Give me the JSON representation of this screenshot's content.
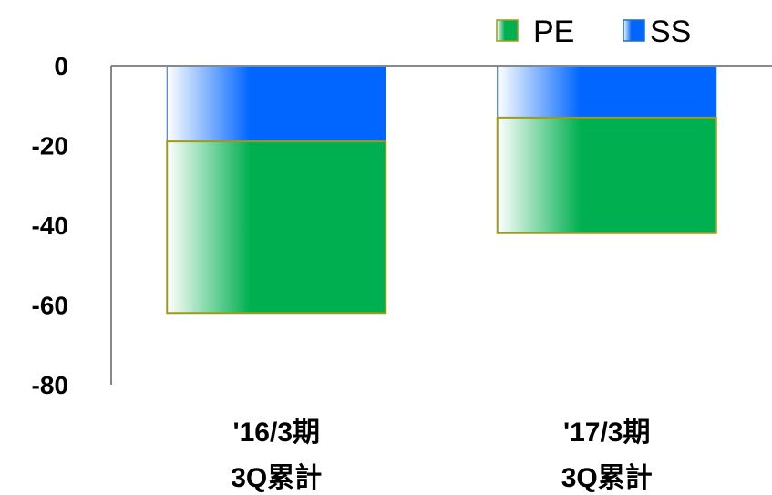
{
  "chart_data": {
    "type": "bar",
    "stacked": true,
    "categories": [
      [
        "'16/3期",
        "3Q累計"
      ],
      [
        "'17/3期",
        "3Q累計"
      ]
    ],
    "series": [
      {
        "name": "SS",
        "values": [
          -19,
          -13
        ],
        "color": "#0066ff"
      },
      {
        "name": "PE",
        "values": [
          -43,
          -29
        ],
        "color": "#00b050"
      }
    ],
    "ylim": [
      -80,
      0
    ],
    "yticks": [
      "0",
      "-20",
      "-40",
      "-60",
      "-80"
    ],
    "legend": {
      "position": "top-right",
      "order": [
        "PE",
        "SS"
      ]
    },
    "grid": false,
    "title": "",
    "xlabel": "",
    "ylabel": ""
  }
}
